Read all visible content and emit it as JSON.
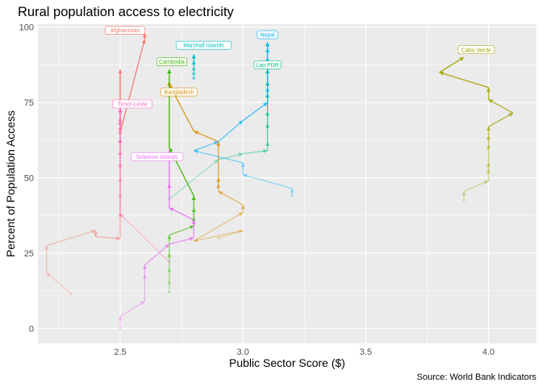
{
  "chart_data": {
    "type": "line",
    "title": "Rural population access to electricity",
    "xlabel": "Public Sector Score ($)",
    "ylabel": "Percent of Population Access",
    "caption": "Source: World Bank Indicators",
    "xlim": [
      2.165,
      4.195
    ],
    "ylim": [
      -5,
      101
    ],
    "x_ticks": [
      2.5,
      3.0,
      3.5,
      4.0
    ],
    "x_tick_labels": [
      "2.5",
      "3.0",
      "3.5",
      "4.0"
    ],
    "y_ticks": [
      0,
      25,
      50,
      75,
      100
    ],
    "y_tick_labels": [
      "0",
      "25",
      "50",
      "75",
      "100"
    ],
    "grid": true,
    "legend": "none",
    "series": [
      {
        "name": "Afghanistan",
        "color": "#F8766D",
        "label_at": [
          2.52,
          99
        ],
        "points": [
          [
            2.3,
            11.5
          ],
          [
            2.2,
            18.5
          ],
          [
            2.2,
            27.5
          ],
          [
            2.4,
            32.5
          ],
          [
            2.4,
            30.5
          ],
          [
            2.5,
            29.8
          ],
          [
            2.5,
            38.5
          ],
          [
            2.5,
            63
          ],
          [
            2.5,
            66
          ],
          [
            2.5,
            70
          ],
          [
            2.5,
            86
          ],
          [
            2.5,
            65
          ],
          [
            2.6,
            96
          ],
          [
            2.6,
            98
          ]
        ]
      },
      {
        "name": "Bangladesh",
        "color": "#D89000",
        "label_at": [
          2.74,
          78.5
        ],
        "points": [
          [
            2.9,
            30
          ],
          [
            3.0,
            32.5
          ],
          [
            2.8,
            29
          ],
          [
            3.0,
            38.5
          ],
          [
            3.0,
            41
          ],
          [
            2.9,
            45.5
          ],
          [
            2.9,
            48
          ],
          [
            2.9,
            50
          ],
          [
            2.9,
            62
          ],
          [
            2.8,
            65.5
          ],
          [
            2.7,
            81
          ],
          [
            2.7,
            82
          ]
        ]
      },
      {
        "name": "Cabo Verde",
        "color": "#A3A500",
        "label_at": [
          3.95,
          92.5
        ],
        "points": [
          [
            3.9,
            42.5
          ],
          [
            3.9,
            45.5
          ],
          [
            4.0,
            49
          ],
          [
            4.0,
            53
          ],
          [
            4.0,
            55
          ],
          [
            4.0,
            61
          ],
          [
            4.0,
            64
          ],
          [
            4.0,
            67
          ],
          [
            4.1,
            71.5
          ],
          [
            4.0,
            76
          ],
          [
            4.0,
            80
          ],
          [
            3.8,
            85
          ],
          [
            3.9,
            90
          ]
        ]
      },
      {
        "name": "Cambodia",
        "color": "#39B600",
        "label_at": [
          2.71,
          88.5
        ],
        "points": [
          [
            2.7,
            12
          ],
          [
            2.7,
            16
          ],
          [
            2.7,
            20
          ],
          [
            2.7,
            25
          ],
          [
            2.7,
            31
          ],
          [
            2.8,
            34
          ],
          [
            2.8,
            37
          ],
          [
            2.8,
            40
          ],
          [
            2.8,
            44
          ],
          [
            2.7,
            60
          ],
          [
            2.7,
            86
          ]
        ]
      },
      {
        "name": "Lao PDR",
        "color": "#00BF7D",
        "label_at": [
          3.1,
          87.5
        ],
        "points": [
          [
            2.7,
            43
          ],
          [
            2.9,
            56
          ],
          [
            3.0,
            58
          ],
          [
            3.1,
            59
          ],
          [
            3.1,
            62
          ],
          [
            3.1,
            68
          ],
          [
            3.1,
            72
          ],
          [
            3.1,
            78
          ],
          [
            3.1,
            82
          ],
          [
            3.1,
            86
          ]
        ]
      },
      {
        "name": "Marshall Islands",
        "color": "#00BFC4",
        "label_at": [
          2.84,
          94
        ],
        "points": [
          [
            2.8,
            83
          ],
          [
            2.8,
            84
          ],
          [
            2.8,
            85.5
          ],
          [
            2.8,
            87
          ],
          [
            2.8,
            89
          ],
          [
            2.8,
            91
          ]
        ]
      },
      {
        "name": "Nepal",
        "color": "#00B0F6",
        "label_at": [
          3.1,
          97.5
        ],
        "points": [
          [
            3.2,
            44
          ],
          [
            3.2,
            46.5
          ],
          [
            3.0,
            51
          ],
          [
            3.0,
            55
          ],
          [
            2.8,
            59
          ],
          [
            2.9,
            62
          ],
          [
            3.0,
            69
          ],
          [
            3.1,
            75
          ],
          [
            3.1,
            80
          ],
          [
            3.1,
            90
          ],
          [
            3.1,
            93
          ],
          [
            3.1,
            95
          ]
        ]
      },
      {
        "name": "Solomon Islands",
        "color": "#E76BF3",
        "label_at": [
          2.65,
          57
        ],
        "points": [
          [
            2.5,
            0
          ],
          [
            2.5,
            4
          ],
          [
            2.6,
            9
          ],
          [
            2.6,
            18
          ],
          [
            2.6,
            21
          ],
          [
            2.7,
            28
          ],
          [
            2.8,
            30
          ],
          [
            2.8,
            36
          ],
          [
            2.7,
            40
          ],
          [
            2.7,
            48
          ],
          [
            2.7,
            59
          ]
        ]
      },
      {
        "name": "Timor-Leste",
        "color": "#FF62BC",
        "label_at": [
          2.55,
          74.5
        ],
        "points": [
          [
            2.7,
            22
          ],
          [
            2.5,
            38
          ],
          [
            2.5,
            45
          ],
          [
            2.5,
            50
          ],
          [
            2.5,
            55
          ],
          [
            2.5,
            59
          ],
          [
            2.5,
            63
          ],
          [
            2.5,
            69
          ],
          [
            2.5,
            73
          ]
        ]
      }
    ]
  }
}
